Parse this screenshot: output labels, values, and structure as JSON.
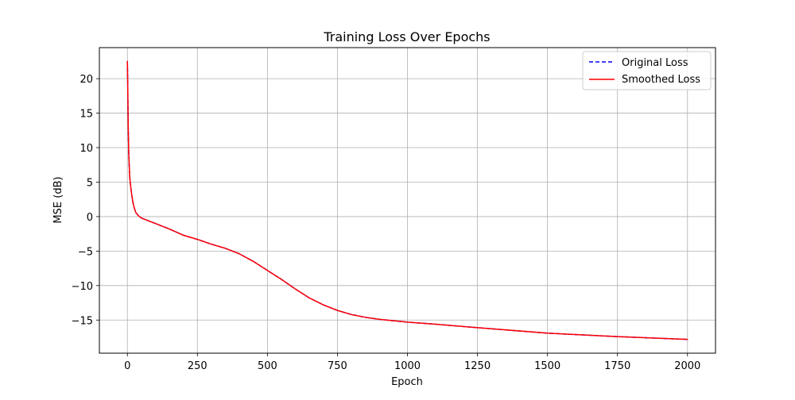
{
  "chart_data": {
    "type": "line",
    "title": "Training Loss Over Epochs",
    "xlabel": "Epoch",
    "ylabel": "MSE (dB)",
    "xlim": [
      -100,
      2100
    ],
    "ylim": [
      -19.8,
      24.5
    ],
    "xticks": [
      0,
      250,
      500,
      750,
      1000,
      1250,
      1500,
      1750,
      2000
    ],
    "yticks": [
      -15,
      -10,
      -5,
      0,
      5,
      10,
      15,
      20
    ],
    "grid": true,
    "legend_position": "top-right",
    "series": [
      {
        "name": "Original Loss",
        "color": "#0000ff",
        "style": "dashed",
        "x": [
          0,
          1,
          2,
          3,
          5,
          8,
          10,
          15,
          20,
          25,
          30,
          40,
          50,
          75,
          100,
          150,
          200,
          250,
          300,
          350,
          400,
          450,
          500,
          550,
          600,
          650,
          700,
          750,
          800,
          850,
          900,
          1000,
          1100,
          1250,
          1500,
          1750,
          2000
        ],
        "y": [
          22.5,
          20.0,
          16.5,
          13.0,
          9.0,
          6.0,
          5.0,
          3.3,
          2.0,
          1.2,
          0.6,
          0.1,
          -0.2,
          -0.6,
          -1.0,
          -1.8,
          -2.7,
          -3.3,
          -4.0,
          -4.6,
          -5.4,
          -6.5,
          -7.8,
          -9.1,
          -10.5,
          -11.8,
          -12.8,
          -13.6,
          -14.2,
          -14.6,
          -14.9,
          -15.3,
          -15.6,
          -16.1,
          -16.9,
          -17.4,
          -17.8
        ]
      },
      {
        "name": "Smoothed Loss",
        "color": "#ff0000",
        "style": "solid",
        "x": [
          0,
          1,
          2,
          3,
          5,
          8,
          10,
          15,
          20,
          25,
          30,
          40,
          50,
          75,
          100,
          150,
          200,
          250,
          300,
          350,
          400,
          450,
          500,
          550,
          600,
          650,
          700,
          750,
          800,
          850,
          900,
          1000,
          1100,
          1250,
          1500,
          1750,
          2000
        ],
        "y": [
          22.5,
          20.0,
          16.5,
          13.0,
          9.0,
          6.0,
          5.0,
          3.3,
          2.0,
          1.2,
          0.6,
          0.1,
          -0.2,
          -0.6,
          -1.0,
          -1.8,
          -2.7,
          -3.3,
          -4.0,
          -4.6,
          -5.4,
          -6.5,
          -7.8,
          -9.1,
          -10.5,
          -11.8,
          -12.8,
          -13.6,
          -14.2,
          -14.6,
          -14.9,
          -15.3,
          -15.6,
          -16.1,
          -16.9,
          -17.4,
          -17.8
        ]
      }
    ]
  }
}
